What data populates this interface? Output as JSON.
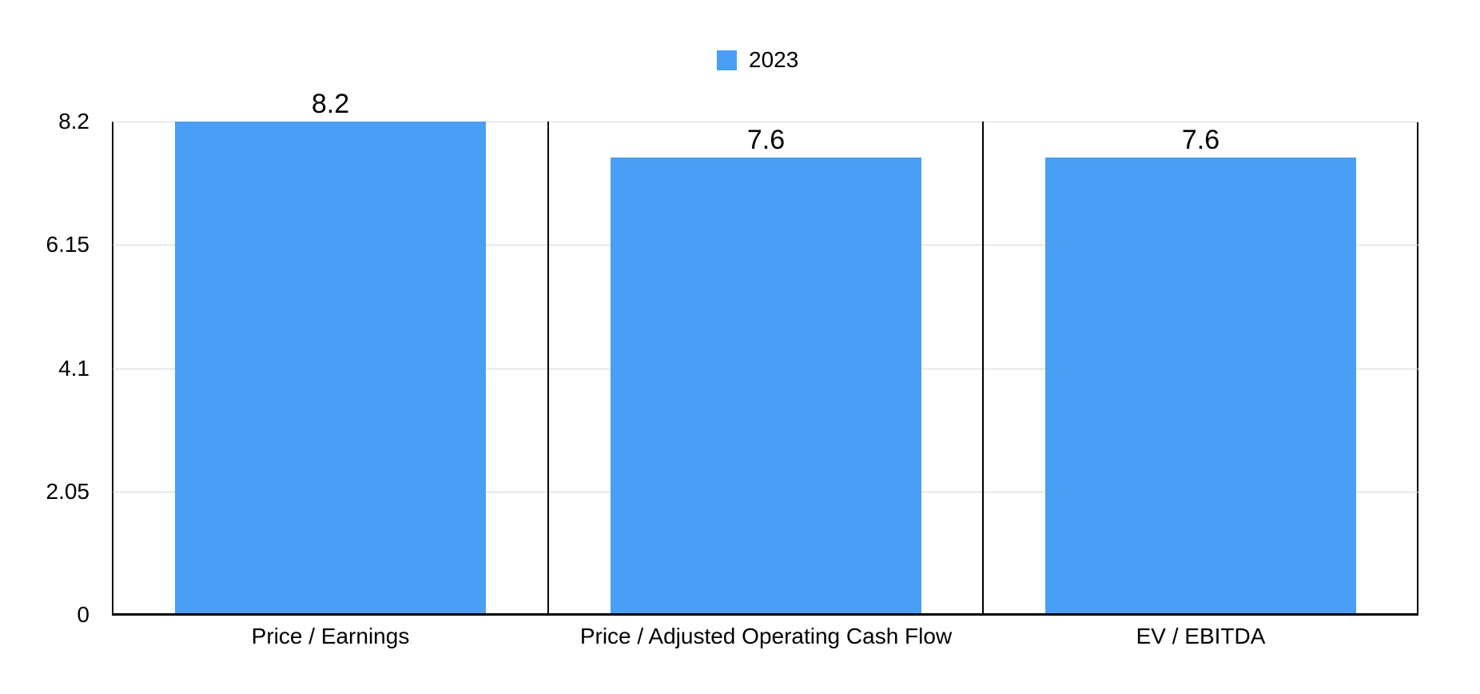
{
  "legend": {
    "items": [
      {
        "label": "2023",
        "color": "#4a9ef5"
      }
    ]
  },
  "chart_data": {
    "type": "bar",
    "title": "",
    "xlabel": "",
    "ylabel": "",
    "categories": [
      "Price / Earnings",
      "Price / Adjusted Operating Cash Flow",
      "EV / EBITDA"
    ],
    "series": [
      {
        "name": "2023",
        "color": "#4a9ef5",
        "values": [
          8.2,
          7.6,
          7.6
        ]
      }
    ],
    "value_labels": [
      "8.2",
      "7.6",
      "7.6"
    ],
    "yticks": [
      0,
      2.05,
      4.1,
      6.15,
      8.2
    ],
    "ytick_labels": [
      "0",
      "2.05",
      "4.1",
      "6.15",
      "8.2"
    ],
    "ylim": [
      0,
      8.2
    ],
    "grid": true,
    "legend_position": "top",
    "panelled": true
  },
  "colors": {
    "bar": "#4a9ef5",
    "gridline": "#d8d8d8",
    "axis": "#000000",
    "background": "#ffffff",
    "text": "#000000"
  }
}
